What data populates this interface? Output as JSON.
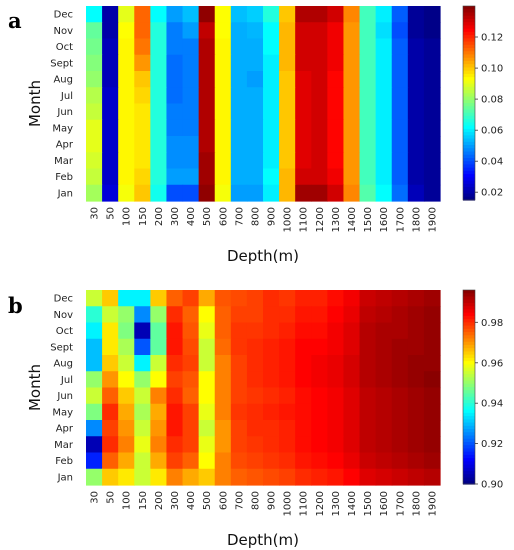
{
  "chart_data": [
    {
      "type": "heatmap",
      "panel_label": "a",
      "xlabel": "Depth(m)",
      "ylabel": "Month",
      "x": [
        "30",
        "50",
        "100",
        "150",
        "200",
        "300",
        "400",
        "500",
        "600",
        "700",
        "800",
        "900",
        "1000",
        "1100",
        "1200",
        "1300",
        "1400",
        "1500",
        "1600",
        "1700",
        "1800",
        "1900"
      ],
      "y": [
        "Dec",
        "Nov",
        "Oct",
        "Sept",
        "Aug",
        "Jul",
        "Jun",
        "May",
        "Apr",
        "Mar",
        "Feb",
        "Jan"
      ],
      "colormap": "jet",
      "vmin": 0.015,
      "vmax": 0.14,
      "colorbar_ticks": [
        "0.02",
        "0.04",
        "0.06",
        "0.08",
        "0.10",
        "0.12"
      ],
      "values": [
        [
          0.062,
          0.02,
          0.09,
          0.112,
          0.062,
          0.05,
          0.054,
          0.138,
          0.093,
          0.054,
          0.056,
          0.066,
          0.1,
          0.134,
          0.134,
          0.13,
          0.108,
          0.07,
          0.06,
          0.042,
          0.018,
          0.016
        ],
        [
          0.074,
          0.02,
          0.093,
          0.112,
          0.066,
          0.046,
          0.05,
          0.132,
          0.093,
          0.052,
          0.053,
          0.062,
          0.102,
          0.13,
          0.13,
          0.126,
          0.106,
          0.07,
          0.058,
          0.04,
          0.018,
          0.016
        ],
        [
          0.076,
          0.022,
          0.094,
          0.11,
          0.066,
          0.046,
          0.046,
          0.134,
          0.094,
          0.052,
          0.052,
          0.062,
          0.102,
          0.13,
          0.13,
          0.126,
          0.106,
          0.07,
          0.06,
          0.042,
          0.02,
          0.018
        ],
        [
          0.078,
          0.022,
          0.094,
          0.106,
          0.066,
          0.044,
          0.046,
          0.134,
          0.094,
          0.052,
          0.052,
          0.06,
          0.102,
          0.13,
          0.13,
          0.126,
          0.106,
          0.07,
          0.06,
          0.042,
          0.02,
          0.018
        ],
        [
          0.08,
          0.022,
          0.094,
          0.1,
          0.066,
          0.044,
          0.046,
          0.134,
          0.094,
          0.052,
          0.05,
          0.06,
          0.1,
          0.128,
          0.13,
          0.124,
          0.106,
          0.07,
          0.06,
          0.042,
          0.02,
          0.018
        ],
        [
          0.084,
          0.024,
          0.094,
          0.098,
          0.066,
          0.044,
          0.046,
          0.134,
          0.094,
          0.052,
          0.052,
          0.06,
          0.1,
          0.128,
          0.13,
          0.124,
          0.106,
          0.07,
          0.06,
          0.042,
          0.02,
          0.018
        ],
        [
          0.086,
          0.024,
          0.094,
          0.096,
          0.066,
          0.046,
          0.046,
          0.134,
          0.094,
          0.052,
          0.052,
          0.06,
          0.1,
          0.128,
          0.13,
          0.124,
          0.106,
          0.07,
          0.06,
          0.042,
          0.02,
          0.018
        ],
        [
          0.09,
          0.024,
          0.094,
          0.096,
          0.066,
          0.046,
          0.046,
          0.134,
          0.094,
          0.052,
          0.052,
          0.06,
          0.1,
          0.128,
          0.13,
          0.124,
          0.106,
          0.07,
          0.06,
          0.042,
          0.02,
          0.018
        ],
        [
          0.09,
          0.024,
          0.094,
          0.096,
          0.066,
          0.048,
          0.048,
          0.134,
          0.094,
          0.052,
          0.052,
          0.06,
          0.1,
          0.128,
          0.13,
          0.124,
          0.106,
          0.07,
          0.06,
          0.042,
          0.02,
          0.018
        ],
        [
          0.088,
          0.024,
          0.094,
          0.096,
          0.066,
          0.048,
          0.048,
          0.136,
          0.094,
          0.052,
          0.052,
          0.06,
          0.1,
          0.128,
          0.13,
          0.124,
          0.106,
          0.07,
          0.06,
          0.042,
          0.02,
          0.018
        ],
        [
          0.086,
          0.024,
          0.094,
          0.098,
          0.066,
          0.05,
          0.05,
          0.136,
          0.094,
          0.052,
          0.052,
          0.062,
          0.102,
          0.13,
          0.13,
          0.126,
          0.106,
          0.07,
          0.06,
          0.042,
          0.02,
          0.018
        ],
        [
          0.082,
          0.026,
          0.092,
          0.1,
          0.064,
          0.04,
          0.04,
          0.138,
          0.092,
          0.05,
          0.05,
          0.06,
          0.102,
          0.136,
          0.136,
          0.13,
          0.108,
          0.072,
          0.062,
          0.044,
          0.022,
          0.018
        ]
      ]
    },
    {
      "type": "heatmap",
      "panel_label": "b",
      "xlabel": "Depth(m)",
      "ylabel": "Month",
      "x": [
        "30",
        "50",
        "100",
        "150",
        "200",
        "300",
        "400",
        "500",
        "600",
        "700",
        "800",
        "900",
        "1000",
        "1100",
        "1200",
        "1300",
        "1400",
        "1500",
        "1600",
        "1700",
        "1800",
        "1900"
      ],
      "y": [
        "Dec",
        "Nov",
        "Oct",
        "Sept",
        "Aug",
        "Jul",
        "Jun",
        "May",
        "Apr",
        "Mar",
        "Feb",
        "Jan"
      ],
      "colormap": "jet",
      "vmin": 0.9,
      "vmax": 0.996,
      "colorbar_ticks": [
        "0.90",
        "0.92",
        "0.94",
        "0.96",
        "0.98"
      ],
      "values": [
        [
          0.955,
          0.965,
          0.935,
          0.935,
          0.965,
          0.975,
          0.978,
          0.968,
          0.976,
          0.977,
          0.978,
          0.98,
          0.979,
          0.981,
          0.981,
          0.983,
          0.985,
          0.989,
          0.99,
          0.991,
          0.992,
          0.993
        ],
        [
          0.94,
          0.955,
          0.95,
          0.925,
          0.95,
          0.98,
          0.975,
          0.96,
          0.975,
          0.978,
          0.978,
          0.98,
          0.98,
          0.982,
          0.982,
          0.984,
          0.986,
          0.99,
          0.991,
          0.992,
          0.993,
          0.994
        ],
        [
          0.935,
          0.962,
          0.948,
          0.905,
          0.945,
          0.982,
          0.976,
          0.958,
          0.975,
          0.979,
          0.979,
          0.98,
          0.981,
          0.983,
          0.983,
          0.985,
          0.987,
          0.991,
          0.992,
          0.992,
          0.993,
          0.994
        ],
        [
          0.93,
          0.962,
          0.952,
          0.92,
          0.945,
          0.982,
          0.977,
          0.955,
          0.974,
          0.979,
          0.98,
          0.981,
          0.982,
          0.984,
          0.984,
          0.985,
          0.987,
          0.991,
          0.992,
          0.993,
          0.993,
          0.994
        ],
        [
          0.93,
          0.965,
          0.955,
          0.935,
          0.955,
          0.98,
          0.978,
          0.955,
          0.972,
          0.978,
          0.98,
          0.981,
          0.982,
          0.984,
          0.985,
          0.986,
          0.988,
          0.991,
          0.992,
          0.993,
          0.994,
          0.994
        ],
        [
          0.95,
          0.97,
          0.96,
          0.95,
          0.96,
          0.978,
          0.976,
          0.96,
          0.972,
          0.978,
          0.98,
          0.981,
          0.982,
          0.984,
          0.985,
          0.986,
          0.988,
          0.991,
          0.992,
          0.993,
          0.994,
          0.995
        ],
        [
          0.955,
          0.975,
          0.965,
          0.955,
          0.972,
          0.98,
          0.975,
          0.96,
          0.972,
          0.978,
          0.979,
          0.98,
          0.981,
          0.983,
          0.984,
          0.985,
          0.987,
          0.99,
          0.991,
          0.992,
          0.993,
          0.994
        ],
        [
          0.948,
          0.98,
          0.968,
          0.952,
          0.968,
          0.982,
          0.978,
          0.958,
          0.972,
          0.979,
          0.98,
          0.981,
          0.982,
          0.983,
          0.984,
          0.985,
          0.987,
          0.99,
          0.991,
          0.992,
          0.993,
          0.994
        ],
        [
          0.925,
          0.978,
          0.97,
          0.955,
          0.97,
          0.982,
          0.978,
          0.955,
          0.97,
          0.978,
          0.98,
          0.98,
          0.981,
          0.983,
          0.984,
          0.985,
          0.987,
          0.99,
          0.991,
          0.992,
          0.993,
          0.994
        ],
        [
          0.905,
          0.98,
          0.972,
          0.958,
          0.972,
          0.98,
          0.978,
          0.958,
          0.97,
          0.978,
          0.979,
          0.98,
          0.981,
          0.983,
          0.984,
          0.985,
          0.987,
          0.99,
          0.991,
          0.992,
          0.993,
          0.994
        ],
        [
          0.915,
          0.975,
          0.968,
          0.955,
          0.968,
          0.978,
          0.975,
          0.96,
          0.972,
          0.977,
          0.978,
          0.979,
          0.98,
          0.982,
          0.983,
          0.984,
          0.986,
          0.989,
          0.99,
          0.991,
          0.992,
          0.993
        ],
        [
          0.95,
          0.965,
          0.962,
          0.955,
          0.962,
          0.972,
          0.968,
          0.965,
          0.972,
          0.975,
          0.976,
          0.977,
          0.978,
          0.98,
          0.981,
          0.982,
          0.984,
          0.987,
          0.988,
          0.989,
          0.99,
          0.991
        ]
      ]
    }
  ]
}
